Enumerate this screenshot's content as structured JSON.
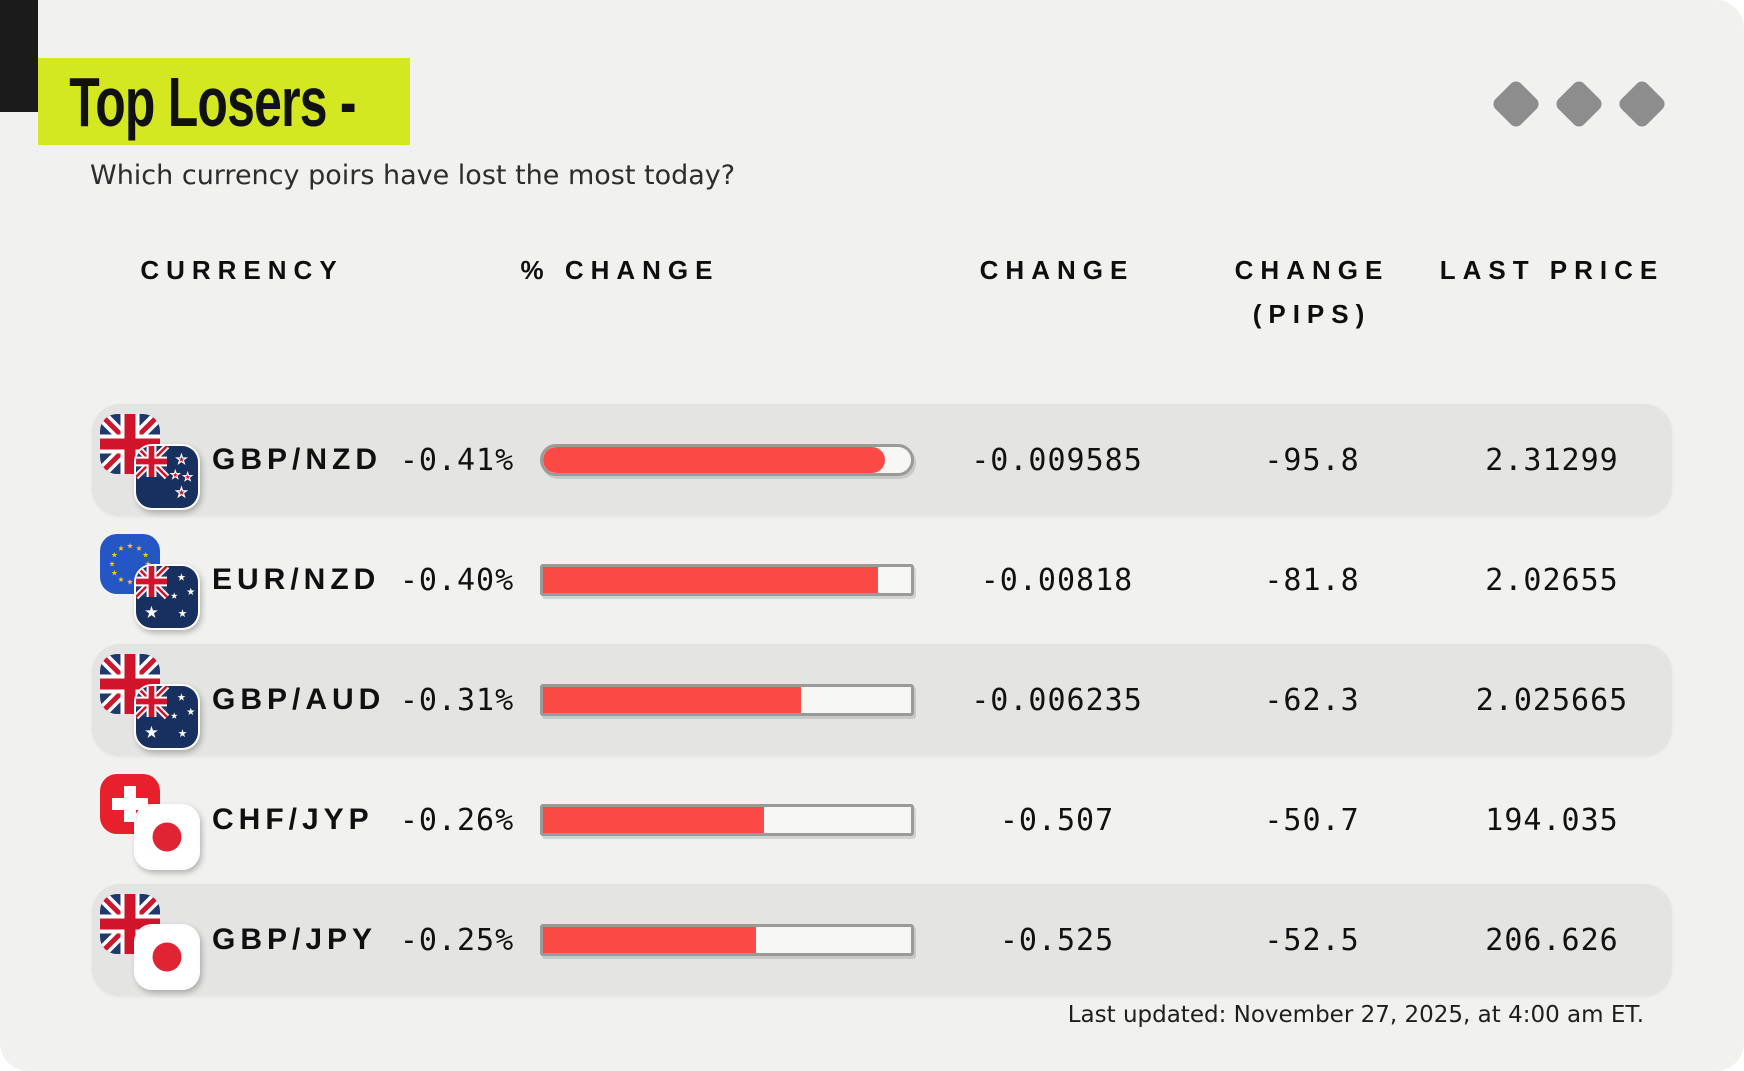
{
  "page": {
    "title": "Top Losers -",
    "subtitle": "Which currency poirs have lost the most today?",
    "footer": "Last updated: November 27, 2025, at 4:00 am ET.",
    "decor_diamond_count": 3
  },
  "colors": {
    "accent_lime": "#d3e821",
    "bar_red": "#fb4a45",
    "row_bg": "#e4e4e2",
    "page_bg": "#f1f1ef",
    "diamond_gray": "#8d8d8d"
  },
  "table": {
    "headers": [
      {
        "label": "CURRENCY"
      },
      {
        "label": "% CHANGE"
      },
      {
        "label": "CHANGE"
      },
      {
        "label": "CHANGE",
        "sub": "(PIPS)"
      },
      {
        "label": "LAST PRICE"
      }
    ],
    "rows": [
      {
        "pair": "GBP/NZD",
        "flags": [
          "uk-flag-icon",
          "nz-flag-icon"
        ],
        "pct_change": "-0.41%",
        "bar_fill_pct": 93,
        "change": "-0.009585",
        "change_pips": "-95.8",
        "last_price": "2.31299",
        "shaded": true
      },
      {
        "pair": "EUR/NZD",
        "flags": [
          "eu-flag-icon",
          "au-flag-icon"
        ],
        "pct_change": "-0.40%",
        "bar_fill_pct": 91,
        "change": "-0.00818",
        "change_pips": "-81.8",
        "last_price": "2.02655",
        "shaded": false
      },
      {
        "pair": "GBP/AUD",
        "flags": [
          "uk-flag-icon",
          "au-flag-icon"
        ],
        "pct_change": "-0.31%",
        "bar_fill_pct": 70,
        "change": "-0.006235",
        "change_pips": "-62.3",
        "last_price": "2.025665",
        "shaded": true
      },
      {
        "pair": "CHF/JYP",
        "flags": [
          "ch-flag-icon",
          "jp-flag-icon"
        ],
        "pct_change": "-0.26%",
        "bar_fill_pct": 60,
        "change": "-0.507",
        "change_pips": "-50.7",
        "last_price": "194.035",
        "shaded": false
      },
      {
        "pair": "GBP/JPY",
        "flags": [
          "uk-flag-icon",
          "jp-flag-icon"
        ],
        "pct_change": "-0.25%",
        "bar_fill_pct": 58,
        "change": "-0.525",
        "change_pips": "-52.5",
        "last_price": "206.626",
        "shaded": true
      }
    ]
  },
  "chart_data": {
    "type": "table",
    "title": "Top Losers -",
    "subtitle": "Which currency poirs have lost the most today?",
    "columns": [
      "CURRENCY",
      "% CHANGE",
      "CHANGE",
      "CHANGE (PIPS)",
      "LAST PRICE"
    ],
    "rows": [
      [
        "GBP/NZD",
        -0.41,
        -0.009585,
        -95.8,
        2.31299
      ],
      [
        "EUR/NZD",
        -0.4,
        -0.00818,
        -81.8,
        2.02655
      ],
      [
        "GBP/AUD",
        -0.31,
        -0.006235,
        -62.3,
        2.025665
      ],
      [
        "CHF/JYP",
        -0.26,
        -0.507,
        -50.7,
        194.035
      ],
      [
        "GBP/JPY",
        -0.25,
        -0.525,
        -52.5,
        206.626
      ]
    ],
    "bar_fill_fractions": [
      0.93,
      0.91,
      0.7,
      0.6,
      0.58
    ],
    "bar_color": "#fb4a45",
    "footnote": "Last updated: November 27, 2025, at 4:00 am ET."
  }
}
